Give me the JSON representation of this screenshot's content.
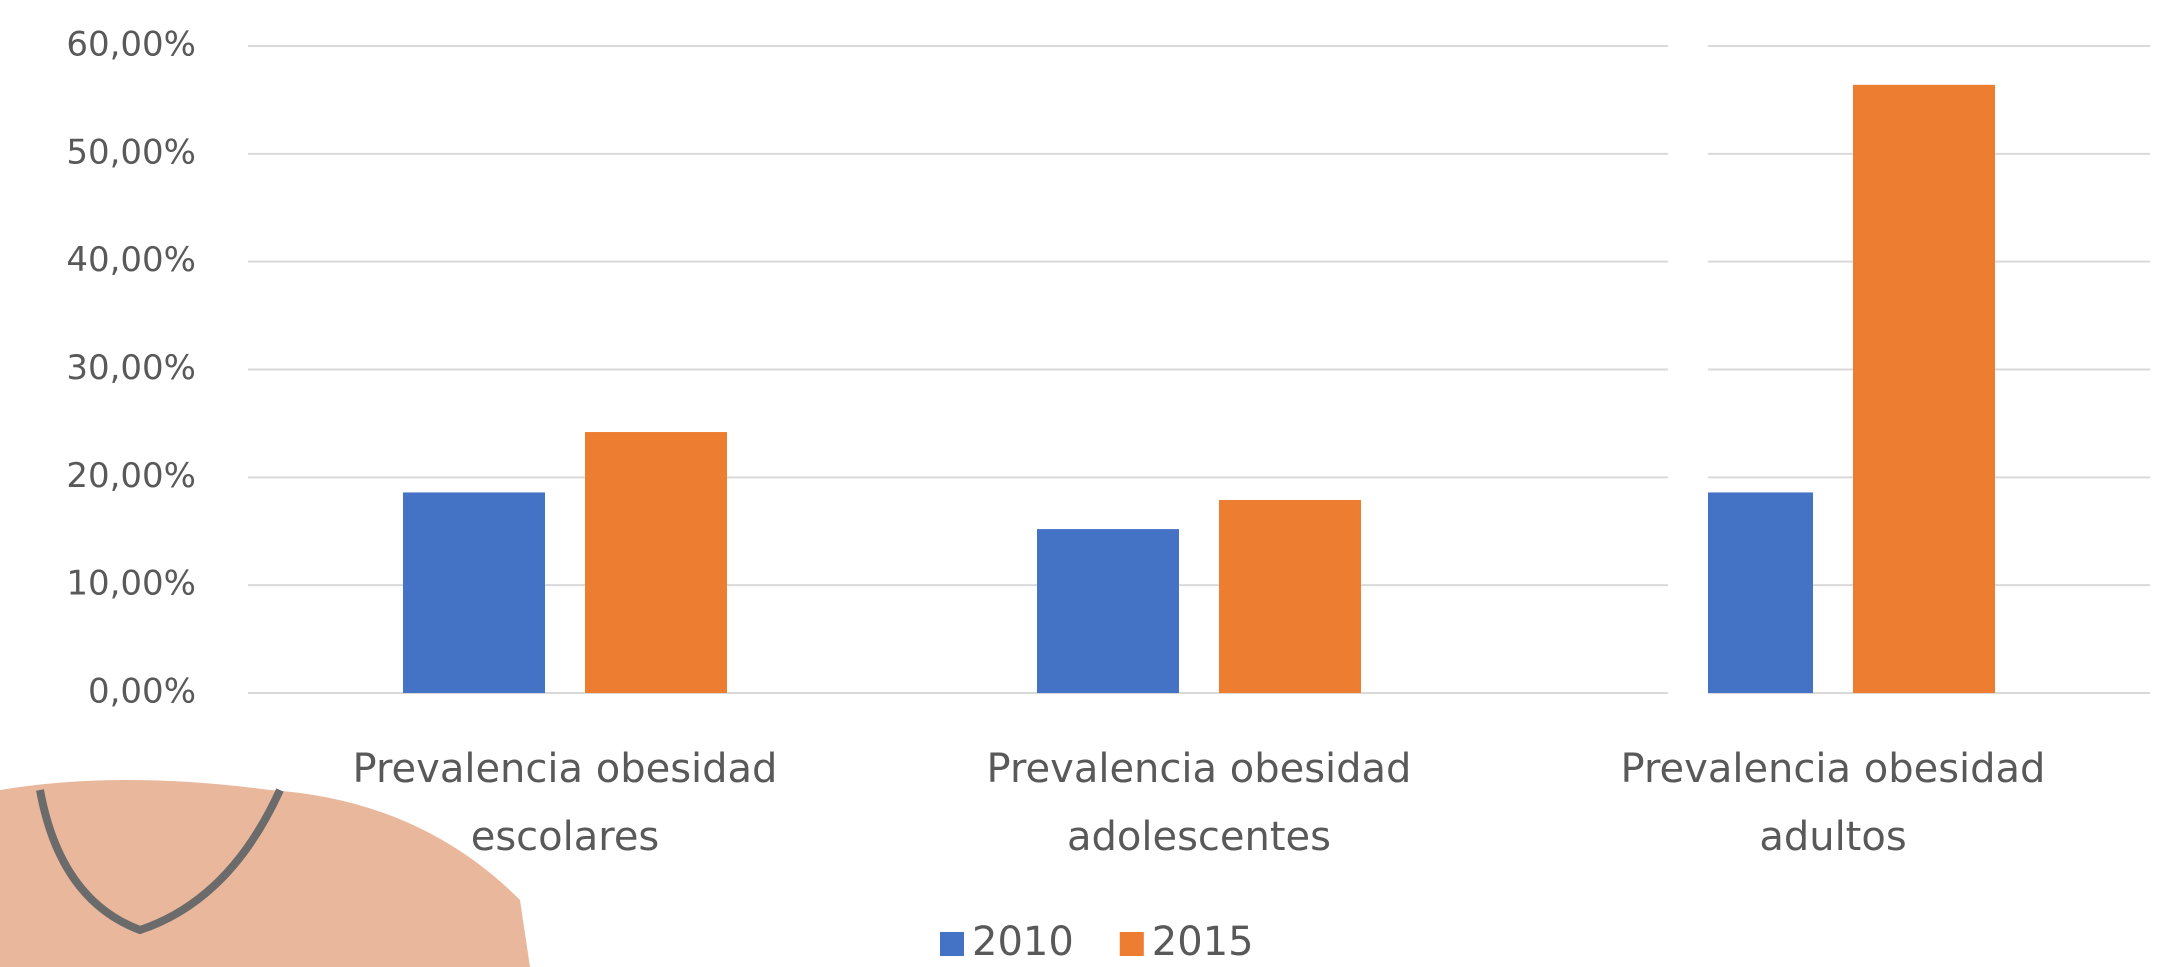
{
  "chart_data": {
    "type": "bar",
    "categories": [
      "Prevalencia obesidad escolares",
      "Prevalencia obesidad adolescentes",
      "Prevalencia obesidad adultos"
    ],
    "series": [
      {
        "name": "2010",
        "color": "#4472c4",
        "values": [
          18.6,
          15.2,
          18.6
        ]
      },
      {
        "name": "2015",
        "color": "#ed7d31",
        "values": [
          24.2,
          17.9,
          56.4
        ]
      }
    ],
    "ylim": [
      0,
      60
    ],
    "yticks": [
      {
        "value": 0,
        "label": "0,00%"
      },
      {
        "value": 10,
        "label": "10,00%"
      },
      {
        "value": 20,
        "label": "20,00%"
      },
      {
        "value": 30,
        "label": "30,00%"
      },
      {
        "value": 40,
        "label": "40,00%"
      },
      {
        "value": 50,
        "label": "50,00%"
      },
      {
        "value": 60,
        "label": "60,00%"
      }
    ],
    "grid": true,
    "legend": "bottom"
  }
}
